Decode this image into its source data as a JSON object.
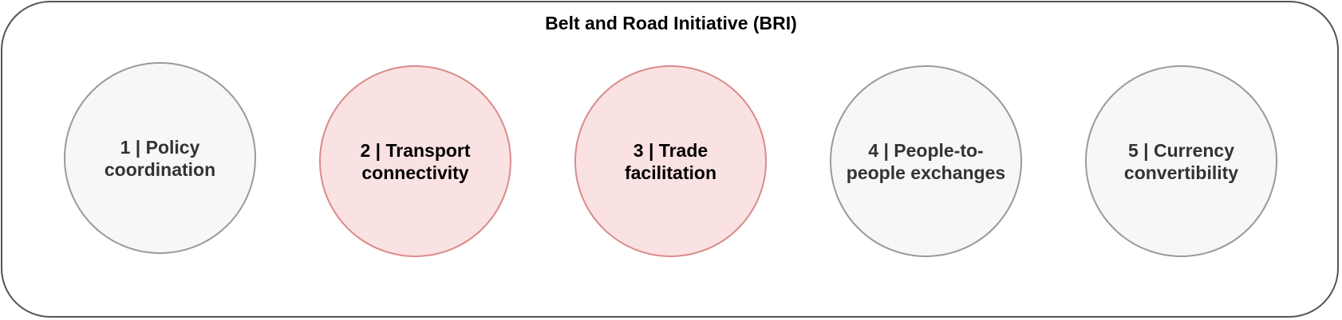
{
  "diagram": {
    "title": "Belt and Road Initiative (BRI)",
    "pillars": [
      {
        "lines": [
          "1 | Policy",
          "coordination"
        ],
        "highlighted": false
      },
      {
        "lines": [
          "2 | Transport",
          "connectivity"
        ],
        "highlighted": true
      },
      {
        "lines": [
          "3 | Trade",
          "facilitation"
        ],
        "highlighted": true
      },
      {
        "lines": [
          "4 | People-to-",
          "people exchanges"
        ],
        "highlighted": false
      },
      {
        "lines": [
          "5 | Currency",
          "convertibility"
        ],
        "highlighted": false
      }
    ]
  },
  "colors": {
    "frame_border": "#555555",
    "circle_border": "#9a9a9a",
    "circle_fill": "#f7f7f7",
    "highlight_border": "#d98b8b",
    "highlight_fill": "#fbe2e2"
  }
}
